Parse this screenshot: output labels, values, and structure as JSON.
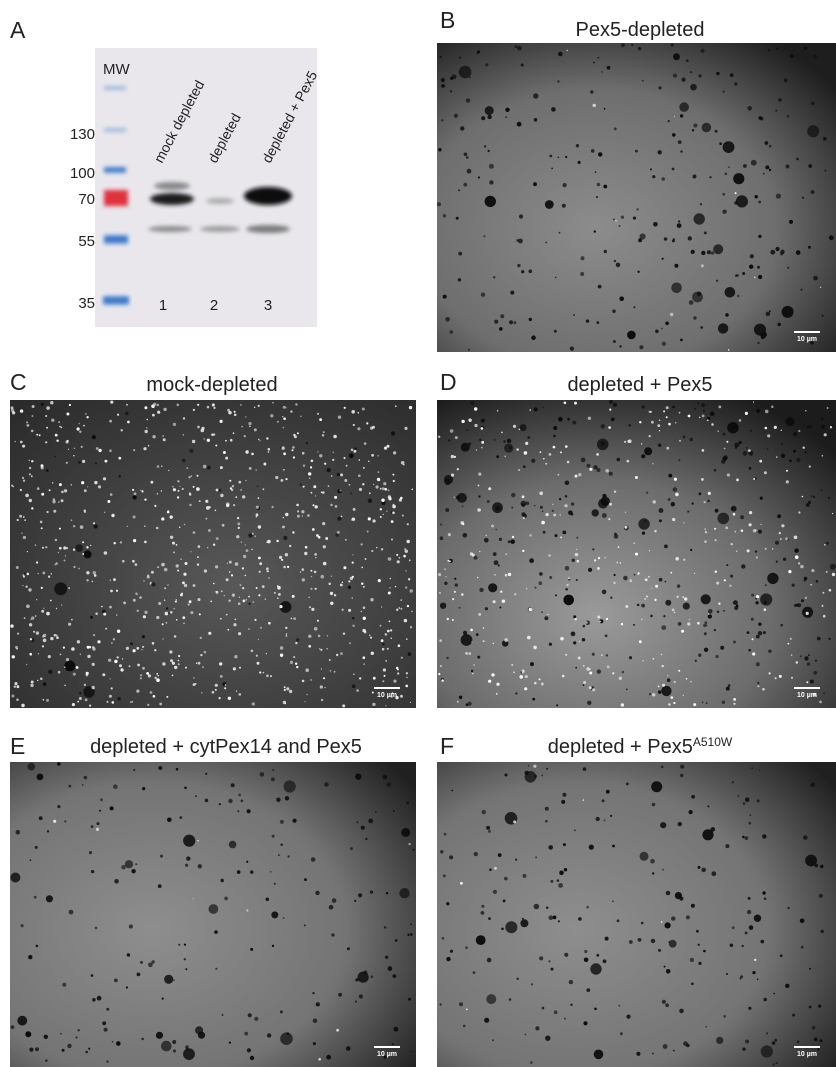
{
  "panels": [
    {
      "letter": "A",
      "gel": {
        "mw_header": "MW",
        "markers": [
          "130",
          "100",
          "70",
          "55",
          "35"
        ],
        "lanes": [
          "mock depleted",
          "depleted",
          "depleted + Pex5"
        ],
        "lane_numbers": [
          "1",
          "2",
          "3"
        ]
      }
    },
    {
      "letter": "B",
      "title": "Pex5-depleted",
      "scale_bar": "10 µm"
    },
    {
      "letter": "C",
      "title": "mock-depleted",
      "scale_bar": "10 µm"
    },
    {
      "letter": "D",
      "title": "depleted + Pex5",
      "scale_bar": "10 µm"
    },
    {
      "letter": "E",
      "title": "depleted + cytPex14 and Pex5",
      "scale_bar": "10 µm"
    },
    {
      "letter": "F",
      "title": "depleted + Pex5",
      "title_superscript": "A510W",
      "scale_bar": "10 µm"
    }
  ]
}
